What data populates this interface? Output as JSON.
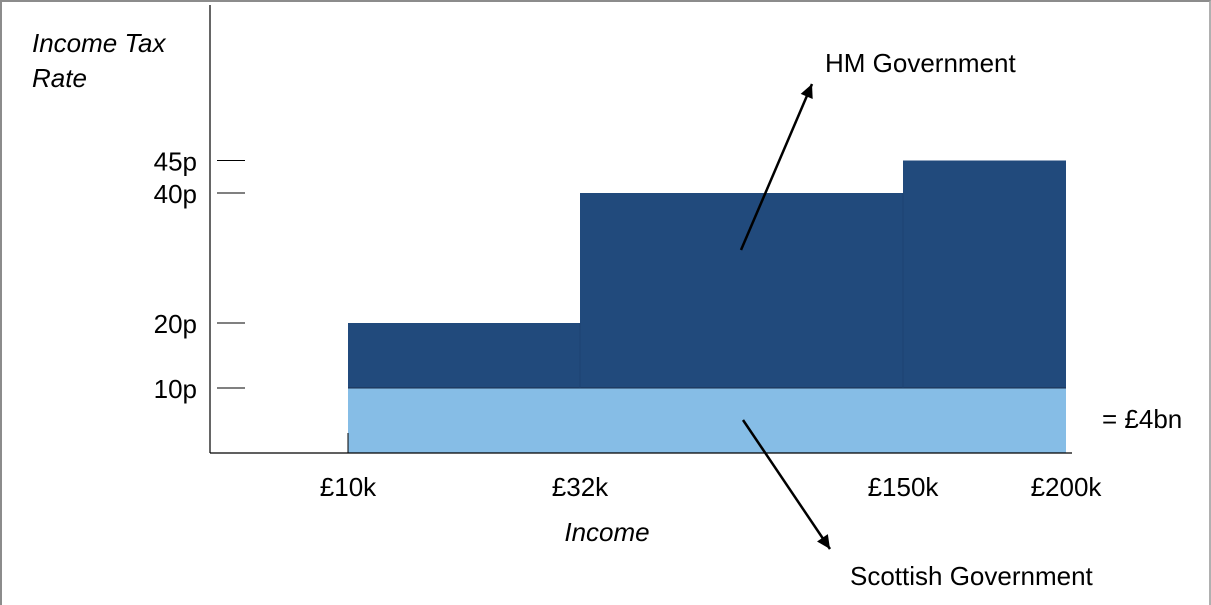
{
  "chart_data": {
    "type": "bar",
    "title": "",
    "ylabel": "Income Tax Rate",
    "xlabel": "Income",
    "y_ticks": [
      {
        "value": 10,
        "label": "10p"
      },
      {
        "value": 20,
        "label": "20p"
      },
      {
        "value": 40,
        "label": "40p"
      },
      {
        "value": 45,
        "label": "45p"
      }
    ],
    "x_ticks": [
      {
        "value": 10,
        "label": "£10k"
      },
      {
        "value": 32,
        "label": "£32k"
      },
      {
        "value": 150,
        "label": "£150k"
      },
      {
        "value": 200,
        "label": "£200k"
      }
    ],
    "series": [
      {
        "name": "Scottish Government",
        "color": "#86bde6",
        "bands": [
          {
            "x_start": 10,
            "x_end": 200,
            "rate": 10
          }
        ]
      },
      {
        "name": "HM Government",
        "color": "#214a7c",
        "bands": [
          {
            "x_start": 10,
            "x_end": 32,
            "rate": 20
          },
          {
            "x_start": 32,
            "x_end": 150,
            "rate": 40
          },
          {
            "x_start": 150,
            "x_end": 200,
            "rate": 45
          }
        ]
      }
    ],
    "annotations": [
      {
        "text": "HM Government",
        "target_series": "HM Government"
      },
      {
        "text": "Scottish Government",
        "target_series": "Scottish Government"
      },
      {
        "text": "= £4bn",
        "target_series": "Scottish Government"
      }
    ],
    "grid": false,
    "legend": "none"
  }
}
